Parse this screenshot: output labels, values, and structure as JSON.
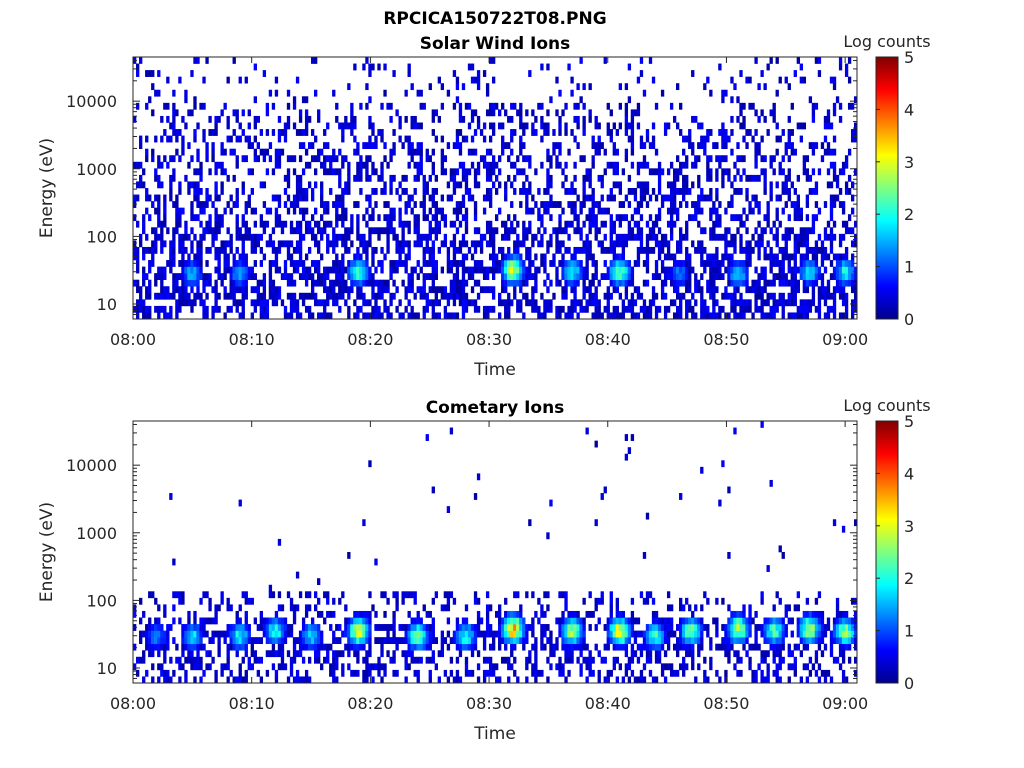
{
  "figure": {
    "title": "RPCICA150722T08.PNG"
  },
  "chart_data": [
    {
      "type": "heatmap",
      "title": "Solar Wind Ions",
      "xlabel": "Time",
      "ylabel": "Energy (eV)",
      "x_ticks": [
        "08:00",
        "08:10",
        "08:20",
        "08:30",
        "08:40",
        "08:50",
        "09:00"
      ],
      "x_range": [
        "08:00",
        "09:01"
      ],
      "y_scale": "log",
      "y_ticks": [
        "10",
        "100",
        "1000",
        "10000"
      ],
      "y_range": [
        6,
        45000
      ],
      "colorbar": {
        "label": "Log counts",
        "ticks": [
          "0",
          "1",
          "2",
          "3",
          "4",
          "5"
        ],
        "range": [
          0,
          5
        ],
        "colormap": "jet"
      },
      "hotspots": [
        {
          "time": "08:05",
          "energy_ev": 28,
          "log_counts": 1.8
        },
        {
          "time": "08:09",
          "energy_ev": 28,
          "log_counts": 1.7
        },
        {
          "time": "08:19",
          "energy_ev": 30,
          "log_counts": 2.5
        },
        {
          "time": "08:32",
          "energy_ev": 32,
          "log_counts": 3.5
        },
        {
          "time": "08:37",
          "energy_ev": 30,
          "log_counts": 2.2
        },
        {
          "time": "08:41",
          "energy_ev": 30,
          "log_counts": 2.8
        },
        {
          "time": "08:46",
          "energy_ev": 28,
          "log_counts": 1.5
        },
        {
          "time": "08:51",
          "energy_ev": 28,
          "log_counts": 2.0
        },
        {
          "time": "08:57",
          "energy_ev": 30,
          "log_counts": 2.0
        },
        {
          "time": "09:00",
          "energy_ev": 30,
          "log_counts": 2.2
        }
      ]
    },
    {
      "type": "heatmap",
      "title": "Cometary Ions",
      "xlabel": "Time",
      "ylabel": "Energy (eV)",
      "x_ticks": [
        "08:00",
        "08:10",
        "08:20",
        "08:30",
        "08:40",
        "08:50",
        "09:00"
      ],
      "x_range": [
        "08:00",
        "09:01"
      ],
      "y_scale": "log",
      "y_ticks": [
        "10",
        "100",
        "1000",
        "10000"
      ],
      "y_range": [
        6,
        45000
      ],
      "colorbar": {
        "label": "Log counts",
        "ticks": [
          "0",
          "1",
          "2",
          "3",
          "4",
          "5"
        ],
        "range": [
          0,
          5
        ],
        "colormap": "jet"
      },
      "hotspots": [
        {
          "time": "08:02",
          "energy_ev": 30,
          "log_counts": 1.5
        },
        {
          "time": "08:05",
          "energy_ev": 30,
          "log_counts": 2.0
        },
        {
          "time": "08:09",
          "energy_ev": 30,
          "log_counts": 2.2
        },
        {
          "time": "08:12",
          "energy_ev": 35,
          "log_counts": 2.3
        },
        {
          "time": "08:15",
          "energy_ev": 30,
          "log_counts": 2.0
        },
        {
          "time": "08:19",
          "energy_ev": 35,
          "log_counts": 3.5
        },
        {
          "time": "08:24",
          "energy_ev": 30,
          "log_counts": 2.8
        },
        {
          "time": "08:28",
          "energy_ev": 30,
          "log_counts": 2.3
        },
        {
          "time": "08:32",
          "energy_ev": 38,
          "log_counts": 4.0
        },
        {
          "time": "08:37",
          "energy_ev": 35,
          "log_counts": 3.2
        },
        {
          "time": "08:41",
          "energy_ev": 35,
          "log_counts": 3.7
        },
        {
          "time": "08:44",
          "energy_ev": 30,
          "log_counts": 2.5
        },
        {
          "time": "08:47",
          "energy_ev": 35,
          "log_counts": 2.8
        },
        {
          "time": "08:51",
          "energy_ev": 38,
          "log_counts": 3.3
        },
        {
          "time": "08:54",
          "energy_ev": 35,
          "log_counts": 2.6
        },
        {
          "time": "08:57",
          "energy_ev": 38,
          "log_counts": 3.2
        },
        {
          "time": "09:00",
          "energy_ev": 35,
          "log_counts": 3.0
        }
      ]
    }
  ]
}
